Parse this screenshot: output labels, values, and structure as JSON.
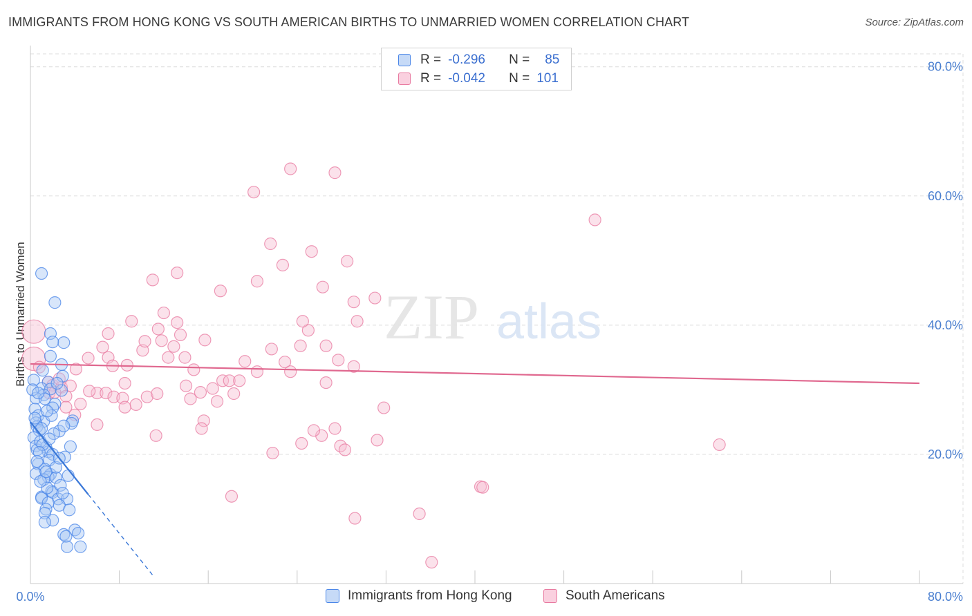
{
  "title": "IMMIGRANTS FROM HONG KONG VS SOUTH AMERICAN BIRTHS TO UNMARRIED WOMEN CORRELATION CHART",
  "source": "Source: ZipAtlas.com",
  "watermark": {
    "zip": "ZIP",
    "atlas": "atlas"
  },
  "colors": {
    "blue": "#4a86e8",
    "blue_fill": "#a9c8f3",
    "blue_line": "#3a78d8",
    "pink": "#e87aa0",
    "pink_fill": "#f6bfd2",
    "pink_line": "#e0688f",
    "tick_text": "#4a7fd0",
    "grid": "#dcdcdc"
  },
  "legend": {
    "rows": [
      {
        "r_label": "R =",
        "r_value": "-0.296",
        "n_label": "N =",
        "n_value": "85",
        "color": "blue"
      },
      {
        "r_label": "R =",
        "r_value": "-0.042",
        "n_label": "N =",
        "n_value": "101",
        "color": "pink"
      }
    ]
  },
  "bottom_legend": [
    "Immigrants from Hong Kong",
    "South Americans"
  ],
  "chart_data": {
    "type": "scatter",
    "title": "IMMIGRANTS FROM HONG KONG VS SOUTH AMERICAN BIRTHS TO UNMARRIED WOMEN CORRELATION CHART",
    "xlabel": "",
    "ylabel": "Births to Unmarried Women",
    "x_tick_labels": [
      "0.0%",
      "80.0%"
    ],
    "y_tick_labels": [
      "20.0%",
      "40.0%",
      "60.0%",
      "80.0%"
    ],
    "y_ticks": [
      20,
      40,
      60,
      80
    ],
    "xlim": [
      0,
      80
    ],
    "ylim": [
      0,
      82
    ],
    "grid": true,
    "series": [
      {
        "name": "Immigrants from Hong Kong",
        "color": "blue",
        "trend": {
          "x": [
            0,
            5.2
          ],
          "y": [
            25.0,
            13.8
          ],
          "dashed_to": [
            11,
            1.3
          ]
        },
        "points": [
          [
            1.0,
            48
          ],
          [
            2.2,
            43.5
          ],
          [
            1.8,
            38.7
          ],
          [
            3.0,
            37.3
          ],
          [
            2.0,
            37.4
          ],
          [
            1.8,
            35.2
          ],
          [
            2.8,
            33.9
          ],
          [
            2.9,
            32.1
          ],
          [
            1.6,
            31.2
          ],
          [
            1.0,
            30.2
          ],
          [
            1.8,
            30.1
          ],
          [
            2.8,
            29.9
          ],
          [
            1.2,
            29.2
          ],
          [
            0.5,
            28.7
          ],
          [
            2.2,
            27.8
          ],
          [
            2.0,
            27.2
          ],
          [
            0.4,
            27.0
          ],
          [
            0.7,
            26.0
          ],
          [
            1.2,
            25.1
          ],
          [
            0.5,
            24.9
          ],
          [
            0.6,
            24.3
          ],
          [
            3.8,
            25.2
          ],
          [
            3.7,
            24.8
          ],
          [
            2.6,
            23.6
          ],
          [
            0.8,
            23.7
          ],
          [
            0.3,
            22.6
          ],
          [
            0.5,
            21.3
          ],
          [
            1.4,
            21.1
          ],
          [
            3.6,
            21.2
          ],
          [
            0.6,
            20.7
          ],
          [
            1.6,
            20.4
          ],
          [
            2.0,
            20.0
          ],
          [
            3.1,
            19.6
          ],
          [
            1.7,
            19.1
          ],
          [
            0.7,
            18.5
          ],
          [
            1.3,
            17.7
          ],
          [
            0.5,
            17.0
          ],
          [
            1.8,
            16.9
          ],
          [
            1.6,
            16.5
          ],
          [
            3.4,
            16.7
          ],
          [
            2.3,
            16.4
          ],
          [
            1.2,
            16.1
          ],
          [
            1.9,
            14.3
          ],
          [
            2.0,
            14.1
          ],
          [
            1.0,
            13.4
          ],
          [
            1.0,
            13.2
          ],
          [
            2.5,
            13.1
          ],
          [
            3.3,
            13.1
          ],
          [
            1.6,
            12.5
          ],
          [
            2.6,
            12.1
          ],
          [
            1.4,
            11.5
          ],
          [
            1.3,
            10.9
          ],
          [
            2.0,
            9.8
          ],
          [
            1.3,
            9.5
          ],
          [
            4.0,
            8.3
          ],
          [
            3.0,
            7.6
          ],
          [
            3.2,
            7.3
          ],
          [
            4.3,
            7.8
          ],
          [
            3.3,
            5.7
          ],
          [
            4.5,
            5.7
          ],
          [
            0.3,
            31.5
          ],
          [
            0.2,
            30.0
          ],
          [
            0.4,
            25.6
          ],
          [
            0.9,
            22.0
          ],
          [
            1.1,
            21.5
          ],
          [
            2.3,
            18.0
          ],
          [
            2.7,
            15.2
          ],
          [
            1.5,
            14.8
          ],
          [
            0.8,
            20.3
          ],
          [
            1.0,
            24.0
          ],
          [
            1.3,
            28.6
          ],
          [
            2.4,
            31.0
          ],
          [
            1.9,
            26.0
          ],
          [
            0.6,
            18.9
          ],
          [
            1.4,
            17.3
          ],
          [
            2.9,
            14.0
          ],
          [
            3.5,
            11.4
          ],
          [
            0.7,
            29.5
          ],
          [
            1.1,
            33.0
          ],
          [
            2.1,
            23.2
          ],
          [
            1.7,
            22.4
          ],
          [
            0.9,
            15.8
          ],
          [
            2.6,
            19.4
          ],
          [
            3.0,
            24.4
          ],
          [
            1.5,
            26.7
          ]
        ]
      },
      {
        "name": "South Americans",
        "color": "pink",
        "trend": {
          "x": [
            0,
            80
          ],
          "y": [
            34.0,
            31.0
          ]
        },
        "points": [
          [
            0.3,
            39.0
          ],
          [
            0.3,
            34.8
          ],
          [
            0.8,
            33.5
          ],
          [
            1.6,
            31.2
          ],
          [
            2.0,
            30.7
          ],
          [
            2.8,
            30.4
          ],
          [
            2.6,
            31.7
          ],
          [
            1.7,
            29.5
          ],
          [
            2.2,
            29.6
          ],
          [
            3.2,
            29.0
          ],
          [
            3.2,
            27.3
          ],
          [
            4.0,
            26.1
          ],
          [
            4.5,
            27.8
          ],
          [
            6.0,
            29.5
          ],
          [
            6.8,
            29.5
          ],
          [
            7.5,
            28.9
          ],
          [
            8.3,
            28.7
          ],
          [
            8.5,
            31.0
          ],
          [
            9.5,
            27.7
          ],
          [
            10.5,
            28.9
          ],
          [
            11.4,
            29.4
          ],
          [
            5.3,
            29.8
          ],
          [
            5.2,
            34.9
          ],
          [
            6.5,
            36.6
          ],
          [
            7.0,
            38.7
          ],
          [
            7.0,
            35.0
          ],
          [
            7.4,
            33.7
          ],
          [
            8.7,
            33.8
          ],
          [
            10.1,
            36.1
          ],
          [
            10.3,
            37.5
          ],
          [
            11.5,
            39.4
          ],
          [
            11.8,
            37.6
          ],
          [
            12.4,
            35.0
          ],
          [
            12.9,
            36.7
          ],
          [
            13.5,
            38.5
          ],
          [
            13.9,
            35.0
          ],
          [
            14.0,
            30.6
          ],
          [
            14.4,
            28.6
          ],
          [
            14.7,
            33.1
          ],
          [
            15.3,
            29.6
          ],
          [
            15.6,
            25.2
          ],
          [
            16.4,
            30.2
          ],
          [
            16.8,
            28.2
          ],
          [
            17.3,
            31.4
          ],
          [
            17.9,
            31.4
          ],
          [
            18.8,
            31.4
          ],
          [
            18.3,
            29.4
          ],
          [
            19.3,
            34.4
          ],
          [
            20.4,
            32.8
          ],
          [
            21.7,
            36.3
          ],
          [
            22.9,
            34.3
          ],
          [
            23.4,
            32.8
          ],
          [
            24.3,
            36.8
          ],
          [
            26.6,
            31.1
          ],
          [
            27.7,
            34.6
          ],
          [
            29.1,
            33.6
          ],
          [
            25.0,
            39.2
          ],
          [
            24.5,
            40.6
          ],
          [
            15.7,
            37.7
          ],
          [
            17.1,
            45.3
          ],
          [
            13.2,
            40.4
          ],
          [
            12.0,
            41.9
          ],
          [
            9.1,
            40.6
          ],
          [
            11.0,
            47.0
          ],
          [
            13.2,
            48.1
          ],
          [
            20.4,
            46.8
          ],
          [
            22.7,
            49.3
          ],
          [
            25.3,
            51.4
          ],
          [
            21.6,
            52.6
          ],
          [
            26.3,
            45.9
          ],
          [
            28.5,
            49.9
          ],
          [
            29.1,
            43.6
          ],
          [
            29.4,
            40.6
          ],
          [
            31.0,
            44.2
          ],
          [
            26.6,
            36.8
          ],
          [
            23.4,
            64.2
          ],
          [
            20.1,
            60.6
          ],
          [
            27.4,
            63.6
          ],
          [
            50.8,
            56.3
          ],
          [
            31.8,
            27.2
          ],
          [
            31.2,
            22.2
          ],
          [
            27.4,
            24.0
          ],
          [
            27.9,
            21.3
          ],
          [
            28.3,
            20.7
          ],
          [
            26.2,
            22.9
          ],
          [
            25.5,
            23.7
          ],
          [
            24.4,
            21.7
          ],
          [
            21.8,
            20.2
          ],
          [
            18.1,
            13.5
          ],
          [
            15.4,
            24.0
          ],
          [
            11.3,
            22.9
          ],
          [
            6.0,
            24.6
          ],
          [
            8.5,
            27.3
          ],
          [
            40.5,
            15.0
          ],
          [
            40.7,
            14.9
          ],
          [
            35.0,
            10.8
          ],
          [
            29.2,
            10.1
          ],
          [
            36.1,
            3.3
          ],
          [
            62.0,
            21.5
          ],
          [
            3.6,
            30.6
          ],
          [
            4.1,
            33.2
          ]
        ]
      }
    ]
  }
}
